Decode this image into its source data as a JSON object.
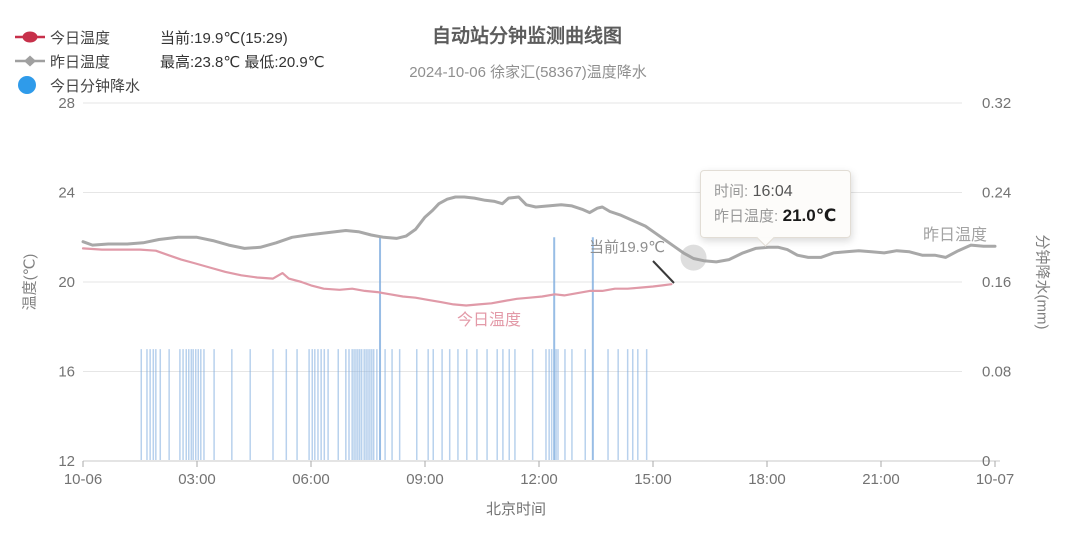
{
  "header": {
    "title": "自动站分钟监测曲线图",
    "subtitle": "2024-10-06 徐家汇(58367)温度降水"
  },
  "legend": {
    "items": [
      {
        "label": "今日温度",
        "value": "当前:19.9℃(15:29)",
        "color": "#c7304a"
      },
      {
        "label": "昨日温度",
        "value": "最高:23.8℃ 最低:20.9℃",
        "color": "#a0a0a0"
      },
      {
        "label": "今日分钟降水",
        "value": "",
        "color": "#2f9bea"
      }
    ]
  },
  "axes": {
    "left_name": "温度(℃)",
    "right_name": "分钟降水(mm)",
    "x_name": "北京时间"
  },
  "tooltip": {
    "time_label": "时间:",
    "time_value": "16:04",
    "series_label": "昨日温度:",
    "series_value": "21.0℃"
  },
  "annotations": {
    "current_label": "当前19.9℃",
    "today_series_label": "今日温度",
    "yesterday_series_label": "昨日温度"
  },
  "chart_data": {
    "type": "line+bar",
    "x_axis": {
      "label": "北京时间",
      "unit": "minutes from 10-06 00:00",
      "range": [
        0,
        1440
      ],
      "ticks": [
        {
          "m": 0,
          "label": "10-06"
        },
        {
          "m": 180,
          "label": "03:00"
        },
        {
          "m": 360,
          "label": "06:00"
        },
        {
          "m": 540,
          "label": "09:00"
        },
        {
          "m": 720,
          "label": "12:00"
        },
        {
          "m": 900,
          "label": "15:00"
        },
        {
          "m": 1080,
          "label": "18:00"
        },
        {
          "m": 1260,
          "label": "21:00"
        },
        {
          "m": 1440,
          "label": "10-07"
        }
      ]
    },
    "y_left": {
      "label": "温度(℃)",
      "range": [
        12,
        28
      ],
      "ticks": [
        12,
        16,
        20,
        24,
        28
      ]
    },
    "y_right": {
      "label": "分钟降水(mm)",
      "range": [
        0,
        0.32
      ],
      "ticks": [
        "0",
        "0.08",
        "0.16",
        "0.24",
        "0.32"
      ]
    },
    "stats": {
      "today_current": "19.9℃",
      "today_current_time": "15:29",
      "yesterday_max": "23.8℃",
      "yesterday_min": "20.9℃"
    },
    "hover": {
      "time": "16:04",
      "t_min": 964,
      "series": "昨日温度",
      "value_num": 21.0,
      "value": "21.0℃"
    },
    "series": [
      {
        "name": "今日温度",
        "type": "line",
        "unit": "℃",
        "color": "#e09aa8",
        "points": [
          [
            0,
            21.5
          ],
          [
            30,
            21.45
          ],
          [
            60,
            21.45
          ],
          [
            90,
            21.45
          ],
          [
            115,
            21.4
          ],
          [
            135,
            21.2
          ],
          [
            155,
            21.0
          ],
          [
            175,
            20.85
          ],
          [
            200,
            20.65
          ],
          [
            225,
            20.45
          ],
          [
            250,
            20.3
          ],
          [
            275,
            20.2
          ],
          [
            300,
            20.15
          ],
          [
            315,
            20.4
          ],
          [
            325,
            20.15
          ],
          [
            345,
            20.0
          ],
          [
            360,
            19.85
          ],
          [
            380,
            19.7
          ],
          [
            405,
            19.65
          ],
          [
            425,
            19.7
          ],
          [
            445,
            19.6
          ],
          [
            465,
            19.55
          ],
          [
            485,
            19.45
          ],
          [
            505,
            19.35
          ],
          [
            525,
            19.3
          ],
          [
            545,
            19.2
          ],
          [
            565,
            19.1
          ],
          [
            585,
            19.0
          ],
          [
            605,
            18.95
          ],
          [
            625,
            19.0
          ],
          [
            645,
            19.05
          ],
          [
            665,
            19.15
          ],
          [
            685,
            19.25
          ],
          [
            705,
            19.3
          ],
          [
            725,
            19.35
          ],
          [
            745,
            19.45
          ],
          [
            760,
            19.4
          ],
          [
            780,
            19.5
          ],
          [
            800,
            19.6
          ],
          [
            820,
            19.6
          ],
          [
            840,
            19.7
          ],
          [
            860,
            19.7
          ],
          [
            880,
            19.75
          ],
          [
            900,
            19.8
          ],
          [
            915,
            19.85
          ],
          [
            929,
            19.9
          ]
        ]
      },
      {
        "name": "昨日温度",
        "type": "line",
        "unit": "℃",
        "color": "#a8a8a8",
        "points": [
          [
            0,
            21.8
          ],
          [
            15,
            21.65
          ],
          [
            40,
            21.7
          ],
          [
            70,
            21.7
          ],
          [
            95,
            21.75
          ],
          [
            120,
            21.9
          ],
          [
            150,
            22.0
          ],
          [
            180,
            22.0
          ],
          [
            205,
            21.85
          ],
          [
            230,
            21.65
          ],
          [
            255,
            21.5
          ],
          [
            280,
            21.55
          ],
          [
            305,
            21.75
          ],
          [
            330,
            22.0
          ],
          [
            355,
            22.1
          ],
          [
            385,
            22.2
          ],
          [
            415,
            22.3
          ],
          [
            435,
            22.25
          ],
          [
            455,
            22.1
          ],
          [
            475,
            22.0
          ],
          [
            495,
            21.95
          ],
          [
            510,
            22.05
          ],
          [
            525,
            22.35
          ],
          [
            540,
            22.9
          ],
          [
            552,
            23.2
          ],
          [
            562,
            23.5
          ],
          [
            575,
            23.7
          ],
          [
            588,
            23.8
          ],
          [
            602,
            23.8
          ],
          [
            618,
            23.75
          ],
          [
            635,
            23.65
          ],
          [
            650,
            23.6
          ],
          [
            662,
            23.5
          ],
          [
            672,
            23.75
          ],
          [
            688,
            23.8
          ],
          [
            700,
            23.45
          ],
          [
            715,
            23.35
          ],
          [
            735,
            23.4
          ],
          [
            755,
            23.45
          ],
          [
            772,
            23.4
          ],
          [
            788,
            23.25
          ],
          [
            800,
            23.1
          ],
          [
            812,
            23.3
          ],
          [
            820,
            23.35
          ],
          [
            832,
            23.15
          ],
          [
            848,
            23.0
          ],
          [
            868,
            22.75
          ],
          [
            888,
            22.5
          ],
          [
            903,
            22.2
          ],
          [
            918,
            21.9
          ],
          [
            933,
            21.6
          ],
          [
            948,
            21.3
          ],
          [
            964,
            21.05
          ],
          [
            980,
            20.95
          ],
          [
            1000,
            20.9
          ],
          [
            1020,
            21.0
          ],
          [
            1042,
            21.3
          ],
          [
            1062,
            21.5
          ],
          [
            1082,
            21.55
          ],
          [
            1098,
            21.55
          ],
          [
            1112,
            21.45
          ],
          [
            1128,
            21.2
          ],
          [
            1145,
            21.1
          ],
          [
            1165,
            21.1
          ],
          [
            1185,
            21.3
          ],
          [
            1205,
            21.35
          ],
          [
            1225,
            21.4
          ],
          [
            1245,
            21.35
          ],
          [
            1265,
            21.3
          ],
          [
            1285,
            21.4
          ],
          [
            1305,
            21.35
          ],
          [
            1325,
            21.2
          ],
          [
            1345,
            21.2
          ],
          [
            1362,
            21.1
          ],
          [
            1382,
            21.4
          ],
          [
            1402,
            21.65
          ],
          [
            1422,
            21.6
          ],
          [
            1440,
            21.6
          ]
        ]
      },
      {
        "name": "今日分钟降水",
        "type": "bar",
        "unit": "mm",
        "color": "#7eacde",
        "points": [
          [
            92,
            0.1
          ],
          [
            101,
            0.1
          ],
          [
            106,
            0.1
          ],
          [
            111,
            0.1
          ],
          [
            115,
            0.1
          ],
          [
            122,
            0.1
          ],
          [
            136,
            0.1
          ],
          [
            153,
            0.1
          ],
          [
            158,
            0.1
          ],
          [
            163,
            0.1
          ],
          [
            167,
            0.1
          ],
          [
            171,
            0.1
          ],
          [
            174,
            0.1
          ],
          [
            178,
            0.1
          ],
          [
            182,
            0.1
          ],
          [
            186,
            0.1
          ],
          [
            191,
            0.1
          ],
          [
            207,
            0.1
          ],
          [
            235,
            0.1
          ],
          [
            264,
            0.1
          ],
          [
            300,
            0.1
          ],
          [
            321,
            0.1
          ],
          [
            338,
            0.1
          ],
          [
            357,
            0.1
          ],
          [
            362,
            0.1
          ],
          [
            366,
            0.1
          ],
          [
            371,
            0.1
          ],
          [
            376,
            0.1
          ],
          [
            381,
            0.1
          ],
          [
            387,
            0.1
          ],
          [
            403,
            0.1
          ],
          [
            415,
            0.1
          ],
          [
            420,
            0.1
          ],
          [
            425,
            0.1
          ],
          [
            428,
            0.1
          ],
          [
            431,
            0.1
          ],
          [
            434,
            0.1
          ],
          [
            437,
            0.1
          ],
          [
            440,
            0.1
          ],
          [
            444,
            0.1
          ],
          [
            447,
            0.1
          ],
          [
            450,
            0.1
          ],
          [
            453,
            0.1
          ],
          [
            456,
            0.1
          ],
          [
            459,
            0.1
          ],
          [
            464,
            0.1
          ],
          [
            469,
            0.2
          ],
          [
            477,
            0.1
          ],
          [
            488,
            0.1
          ],
          [
            500,
            0.1
          ],
          [
            527,
            0.1
          ],
          [
            545,
            0.1
          ],
          [
            553,
            0.1
          ],
          [
            567,
            0.1
          ],
          [
            579,
            0.1
          ],
          [
            592,
            0.1
          ],
          [
            606,
            0.1
          ],
          [
            622,
            0.1
          ],
          [
            638,
            0.1
          ],
          [
            654,
            0.1
          ],
          [
            663,
            0.1
          ],
          [
            673,
            0.1
          ],
          [
            682,
            0.1
          ],
          [
            710,
            0.1
          ],
          [
            731,
            0.1
          ],
          [
            736,
            0.1
          ],
          [
            740,
            0.1
          ],
          [
            744,
            0.2
          ],
          [
            747,
            0.1
          ],
          [
            750,
            0.1
          ],
          [
            761,
            0.1
          ],
          [
            772,
            0.1
          ],
          [
            793,
            0.1
          ],
          [
            805,
            0.2
          ],
          [
            829,
            0.1
          ],
          [
            845,
            0.1
          ],
          [
            860,
            0.1
          ],
          [
            868,
            0.1
          ],
          [
            876,
            0.1
          ],
          [
            890,
            0.1
          ]
        ]
      }
    ],
    "grid": true,
    "legend_position": "top-left"
  }
}
